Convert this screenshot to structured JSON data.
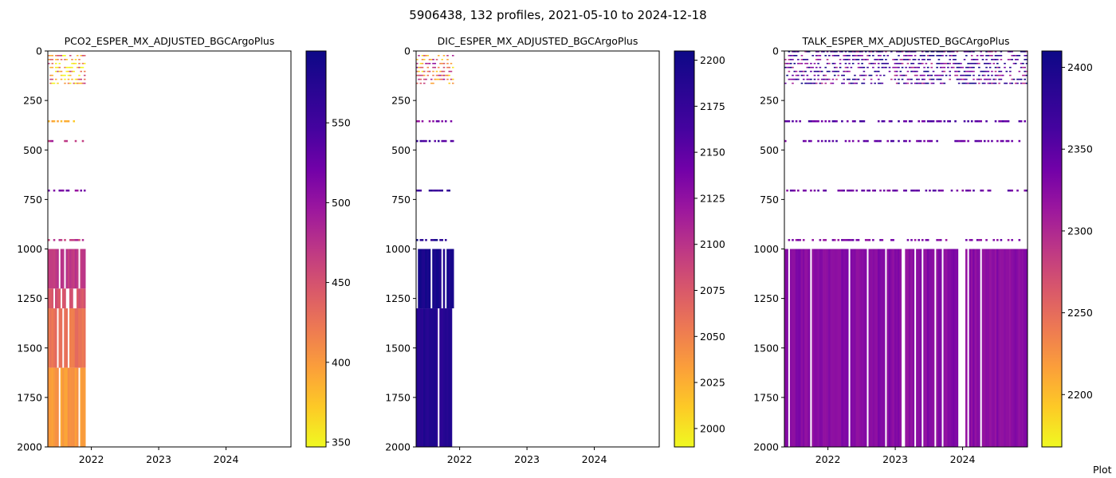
{
  "figure": {
    "title": "5906438, 132 profiles, 2021-05-10 to 2024-12-18",
    "footer": "Plot"
  },
  "chart_data": [
    {
      "type": "heatmap",
      "title": "PCO2_ESPER_MX_ADJUSTED_BGCArgoPlus",
      "xlim": [
        "2021-05-10",
        "2024-12-18"
      ],
      "xticks": [
        "2022",
        "2023",
        "2024"
      ],
      "ylim": [
        2000,
        0
      ],
      "yticks": [
        "0",
        "250",
        "500",
        "750",
        "1000",
        "1250",
        "1500",
        "1750",
        "2000"
      ],
      "colormap": "plasma_r",
      "colorbar": {
        "min": 347,
        "max": 595,
        "ticks": [
          "350",
          "400",
          "450",
          "500",
          "550"
        ]
      },
      "data_extent": {
        "date_start": "2021-05-10",
        "date_end": "2021-11-30"
      },
      "layers": [
        {
          "depth_from": 1000,
          "depth_to": 1200,
          "value": 470
        },
        {
          "depth_from": 1200,
          "depth_to": 1300,
          "value": 450
        },
        {
          "depth_from": 1300,
          "depth_to": 1600,
          "value": 425
        },
        {
          "depth_from": 1600,
          "depth_to": 2000,
          "value": 400
        }
      ],
      "shallow_samples": [
        {
          "depth_from": 20,
          "depth_to": 180,
          "value": 395
        },
        {
          "depth_from": 350,
          "depth_to": 360,
          "value": 390
        },
        {
          "depth_from": 450,
          "depth_to": 460,
          "value": 480
        },
        {
          "depth_from": 700,
          "depth_to": 710,
          "value": 510
        },
        {
          "depth_from": 950,
          "depth_to": 960,
          "value": 470
        }
      ]
    },
    {
      "type": "heatmap",
      "title": "DIC_ESPER_MX_ADJUSTED_BGCArgoPlus",
      "xlim": [
        "2021-05-10",
        "2024-12-18"
      ],
      "xticks": [
        "2022",
        "2023",
        "2024"
      ],
      "ylim": [
        2000,
        0
      ],
      "yticks": [
        "0",
        "250",
        "500",
        "750",
        "1000",
        "1250",
        "1500",
        "1750",
        "2000"
      ],
      "colormap": "plasma_r",
      "colorbar": {
        "min": 1990,
        "max": 2205,
        "ticks": [
          "2000",
          "2025",
          "2050",
          "2075",
          "2100",
          "2125",
          "2150",
          "2175",
          "2200"
        ]
      },
      "data_extent": {
        "date_start": "2021-05-10",
        "date_end": "2021-11-30"
      },
      "layers": [
        {
          "depth_from": 1000,
          "depth_to": 1300,
          "value": 2195
        },
        {
          "depth_from": 1300,
          "depth_to": 2000,
          "value": 2188
        }
      ],
      "shallow_samples": [
        {
          "depth_from": 20,
          "depth_to": 180,
          "value": 2060
        },
        {
          "depth_from": 350,
          "depth_to": 360,
          "value": 2130
        },
        {
          "depth_from": 450,
          "depth_to": 460,
          "value": 2165
        },
        {
          "depth_from": 700,
          "depth_to": 710,
          "value": 2175
        },
        {
          "depth_from": 950,
          "depth_to": 960,
          "value": 2190
        }
      ]
    },
    {
      "type": "heatmap",
      "title": "TALK_ESPER_MX_ADJUSTED_BGCArgoPlus",
      "xlim": [
        "2021-05-10",
        "2024-12-18"
      ],
      "xticks": [
        "2022",
        "2023",
        "2024"
      ],
      "ylim": [
        2000,
        0
      ],
      "yticks": [
        "0",
        "250",
        "500",
        "750",
        "1000",
        "1250",
        "1500",
        "1750",
        "2000"
      ],
      "colormap": "plasma_r",
      "colorbar": {
        "min": 2168,
        "max": 2410,
        "ticks": [
          "2200",
          "2250",
          "2300",
          "2350",
          "2400"
        ]
      },
      "data_extent": {
        "date_start": "2021-05-10",
        "date_end": "2024-12-18"
      },
      "layers": [
        {
          "depth_from": 1000,
          "depth_to": 2000,
          "value": 2325
        }
      ],
      "shallow_samples": [
        {
          "depth_from": 0,
          "depth_to": 180,
          "value": 2360
        },
        {
          "depth_from": 350,
          "depth_to": 360,
          "value": 2350
        },
        {
          "depth_from": 450,
          "depth_to": 460,
          "value": 2345
        },
        {
          "depth_from": 700,
          "depth_to": 710,
          "value": 2340
        },
        {
          "depth_from": 950,
          "depth_to": 960,
          "value": 2330
        }
      ]
    }
  ]
}
